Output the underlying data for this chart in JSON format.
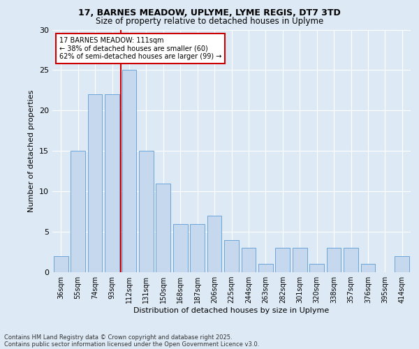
{
  "title_line1": "17, BARNES MEADOW, UPLYME, LYME REGIS, DT7 3TD",
  "title_line2": "Size of property relative to detached houses in Uplyme",
  "xlabel": "Distribution of detached houses by size in Uplyme",
  "ylabel": "Number of detached properties",
  "categories": [
    "36sqm",
    "55sqm",
    "74sqm",
    "93sqm",
    "112sqm",
    "131sqm",
    "150sqm",
    "168sqm",
    "187sqm",
    "206sqm",
    "225sqm",
    "244sqm",
    "263sqm",
    "282sqm",
    "301sqm",
    "320sqm",
    "338sqm",
    "357sqm",
    "376sqm",
    "395sqm",
    "414sqm"
  ],
  "values": [
    2,
    15,
    22,
    22,
    25,
    15,
    11,
    6,
    6,
    7,
    4,
    3,
    1,
    3,
    3,
    1,
    3,
    3,
    1,
    0,
    2
  ],
  "bar_color": "#c5d8ed",
  "bar_edge_color": "#5b9bd5",
  "annotation_line1": "17 BARNES MEADOW: 111sqm",
  "annotation_line2": "← 38% of detached houses are smaller (60)",
  "annotation_line3": "62% of semi-detached houses are larger (99) →",
  "annotation_box_color": "#ffffff",
  "annotation_box_edge": "#cc0000",
  "vline_color": "#cc0000",
  "vline_x": 3.5,
  "ylim": [
    0,
    30
  ],
  "yticks": [
    0,
    5,
    10,
    15,
    20,
    25,
    30
  ],
  "footer_line1": "Contains HM Land Registry data © Crown copyright and database right 2025.",
  "footer_line2": "Contains public sector information licensed under the Open Government Licence v3.0.",
  "background_color": "#dde9f5",
  "plot_bg_color": "#dde9f5",
  "title_fontsize": 9,
  "subtitle_fontsize": 8.5,
  "axis_label_fontsize": 8,
  "tick_fontsize": 7,
  "annotation_fontsize": 7,
  "footer_fontsize": 6
}
